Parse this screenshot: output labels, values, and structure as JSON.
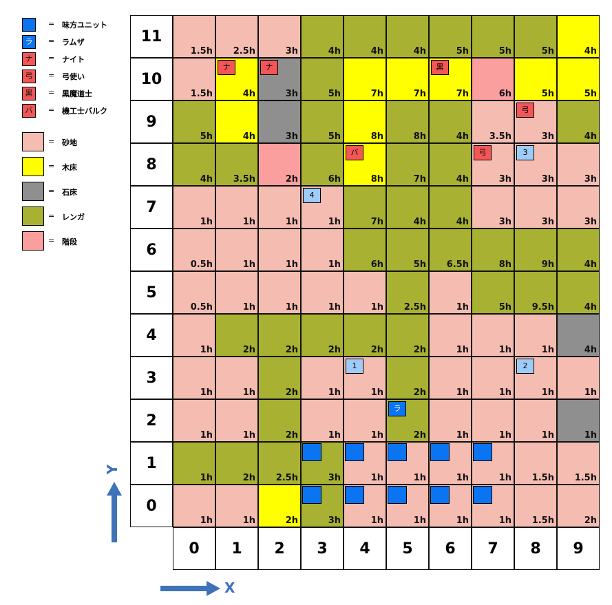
{
  "colors": {
    "sand": "#f5bcb1",
    "wood": "#ffff00",
    "stone": "#8f8f8f",
    "brick": "#a8b132",
    "stairs": "#fb9e9e",
    "ally": "#0a74f2",
    "enemy": "#f25656",
    "spot": "#9ecbf7",
    "arrow": "#3e72b9"
  },
  "legend": {
    "units": [
      {
        "mark": "",
        "kind": "ally",
        "text": "味方ユニット",
        "eq": "="
      },
      {
        "mark": "ラ",
        "kind": "ramza",
        "text": "ラムザ",
        "eq": "="
      },
      {
        "mark": "ナ",
        "kind": "enemy",
        "text": "ナイト",
        "eq": "="
      },
      {
        "mark": "弓",
        "kind": "enemy",
        "text": "弓使い",
        "eq": "="
      },
      {
        "mark": "黒",
        "kind": "enemy",
        "text": "黒魔道士",
        "eq": "="
      },
      {
        "mark": "バ",
        "kind": "enemy",
        "text": "機工士バルク",
        "eq": "="
      }
    ],
    "terrain": [
      {
        "type": "sand",
        "text": "砂地",
        "eq": "="
      },
      {
        "type": "wood",
        "text": "木床",
        "eq": "="
      },
      {
        "type": "stone",
        "text": "石床",
        "eq": "="
      },
      {
        "type": "brick",
        "text": "レンガ",
        "eq": "="
      },
      {
        "type": "stairs",
        "text": "階段",
        "eq": "="
      }
    ]
  },
  "x_labels": [
    "0",
    "1",
    "2",
    "3",
    "4",
    "5",
    "6",
    "7",
    "8",
    "9"
  ],
  "y_labels": [
    "11",
    "10",
    "9",
    "8",
    "7",
    "6",
    "5",
    "4",
    "3",
    "2",
    "1",
    "0"
  ],
  "axis": {
    "y_label": "Y",
    "x_label": "X"
  },
  "grid": [
    {
      "y": "11",
      "cells": [
        [
          "sand",
          "1.5h"
        ],
        [
          "sand",
          "2.5h"
        ],
        [
          "sand",
          "3h"
        ],
        [
          "brick",
          "4h"
        ],
        [
          "brick",
          "4h"
        ],
        [
          "brick",
          "4h"
        ],
        [
          "brick",
          "5h"
        ],
        [
          "brick",
          "5h"
        ],
        [
          "brick",
          "5h"
        ],
        [
          "wood",
          "4h"
        ]
      ]
    },
    {
      "y": "10",
      "cells": [
        [
          "sand",
          "1.5h"
        ],
        [
          "wood",
          "4h",
          "ナ",
          "enemy"
        ],
        [
          "stone",
          "3h",
          "ナ",
          "enemy"
        ],
        [
          "brick",
          "5h"
        ],
        [
          "wood",
          "7h"
        ],
        [
          "wood",
          "7h"
        ],
        [
          "wood",
          "7h",
          "黒",
          "enemy"
        ],
        [
          "stairs",
          "6h"
        ],
        [
          "wood",
          "5h"
        ],
        [
          "wood",
          "5h"
        ]
      ]
    },
    {
      "y": "9",
      "cells": [
        [
          "brick",
          "5h"
        ],
        [
          "wood",
          "4h"
        ],
        [
          "stone",
          "3h"
        ],
        [
          "brick",
          "5h"
        ],
        [
          "wood",
          "8h"
        ],
        [
          "brick",
          "8h"
        ],
        [
          "brick",
          "4h"
        ],
        [
          "sand",
          "3.5h"
        ],
        [
          "sand",
          "3h",
          "弓",
          "enemy"
        ],
        [
          "brick",
          "4h"
        ]
      ]
    },
    {
      "y": "8",
      "cells": [
        [
          "brick",
          "4h"
        ],
        [
          "brick",
          "3.5h"
        ],
        [
          "stairs",
          "2h"
        ],
        [
          "brick",
          "6h"
        ],
        [
          "wood",
          "8h",
          "バ",
          "enemy"
        ],
        [
          "brick",
          "7h"
        ],
        [
          "brick",
          "4h"
        ],
        [
          "sand",
          "3h",
          "弓",
          "enemy"
        ],
        [
          "sand",
          "3h",
          "3",
          "spot"
        ],
        [
          "sand",
          "3h"
        ]
      ]
    },
    {
      "y": "7",
      "cells": [
        [
          "sand",
          "1h"
        ],
        [
          "sand",
          "1h"
        ],
        [
          "sand",
          "1h"
        ],
        [
          "sand",
          "1h",
          "4",
          "spot"
        ],
        [
          "brick",
          "7h"
        ],
        [
          "brick",
          "4h"
        ],
        [
          "brick",
          "4h"
        ],
        [
          "sand",
          "3h"
        ],
        [
          "sand",
          "3h"
        ],
        [
          "sand",
          "3h"
        ]
      ]
    },
    {
      "y": "6",
      "cells": [
        [
          "sand",
          "0.5h"
        ],
        [
          "sand",
          "1h"
        ],
        [
          "sand",
          "1h"
        ],
        [
          "sand",
          "1h"
        ],
        [
          "brick",
          "6h"
        ],
        [
          "brick",
          "5h"
        ],
        [
          "brick",
          "6.5h"
        ],
        [
          "brick",
          "8h"
        ],
        [
          "brick",
          "9h"
        ],
        [
          "brick",
          "4h"
        ]
      ]
    },
    {
      "y": "5",
      "cells": [
        [
          "sand",
          "0.5h"
        ],
        [
          "sand",
          "1h"
        ],
        [
          "sand",
          "1h"
        ],
        [
          "sand",
          "1h"
        ],
        [
          "sand",
          "1h"
        ],
        [
          "brick",
          "2.5h"
        ],
        [
          "sand",
          "1h"
        ],
        [
          "brick",
          "5h"
        ],
        [
          "brick",
          "9.5h"
        ],
        [
          "brick",
          "4h"
        ]
      ]
    },
    {
      "y": "4",
      "cells": [
        [
          "sand",
          "1h"
        ],
        [
          "brick",
          "2h"
        ],
        [
          "brick",
          "2h"
        ],
        [
          "brick",
          "2h"
        ],
        [
          "brick",
          "2h"
        ],
        [
          "brick",
          "2h"
        ],
        [
          "sand",
          "1h"
        ],
        [
          "sand",
          "1h"
        ],
        [
          "sand",
          "1h"
        ],
        [
          "stone",
          "4h"
        ]
      ]
    },
    {
      "y": "3",
      "cells": [
        [
          "sand",
          "1h"
        ],
        [
          "sand",
          "1h"
        ],
        [
          "brick",
          "2h"
        ],
        [
          "sand",
          "1h"
        ],
        [
          "sand",
          "1h",
          "1",
          "spot"
        ],
        [
          "brick",
          "2h"
        ],
        [
          "sand",
          "1h"
        ],
        [
          "sand",
          "1h"
        ],
        [
          "sand",
          "1h",
          "2",
          "spot"
        ],
        [
          "sand",
          "1h"
        ]
      ]
    },
    {
      "y": "2",
      "cells": [
        [
          "sand",
          "1h"
        ],
        [
          "sand",
          "1h"
        ],
        [
          "brick",
          "2h"
        ],
        [
          "sand",
          "1h"
        ],
        [
          "sand",
          "1h"
        ],
        [
          "brick",
          "2h",
          "ラ",
          "ramza"
        ],
        [
          "sand",
          "1h"
        ],
        [
          "sand",
          "1h"
        ],
        [
          "sand",
          "1h"
        ],
        [
          "stone",
          "1h"
        ]
      ]
    },
    {
      "y": "1",
      "cells": [
        [
          "brick",
          "1h"
        ],
        [
          "brick",
          "2h"
        ],
        [
          "brick",
          "2.5h"
        ],
        [
          "brick",
          "3h",
          "",
          "ally"
        ],
        [
          "sand",
          "1h",
          "",
          "ally"
        ],
        [
          "sand",
          "1h",
          "",
          "ally"
        ],
        [
          "sand",
          "1h",
          "",
          "ally"
        ],
        [
          "sand",
          "1h",
          "",
          "ally"
        ],
        [
          "sand",
          "1.5h"
        ],
        [
          "sand",
          "1.5h"
        ]
      ]
    },
    {
      "y": "0",
      "cells": [
        [
          "sand",
          "1h"
        ],
        [
          "sand",
          "1h"
        ],
        [
          "wood",
          "2h"
        ],
        [
          "brick",
          "3h",
          "",
          "ally"
        ],
        [
          "sand",
          "1h",
          "",
          "ally"
        ],
        [
          "sand",
          "1h",
          "",
          "ally"
        ],
        [
          "sand",
          "1h",
          "",
          "ally"
        ],
        [
          "sand",
          "1h",
          "",
          "ally"
        ],
        [
          "sand",
          "1.5h"
        ],
        [
          "sand",
          "2h"
        ]
      ]
    }
  ]
}
